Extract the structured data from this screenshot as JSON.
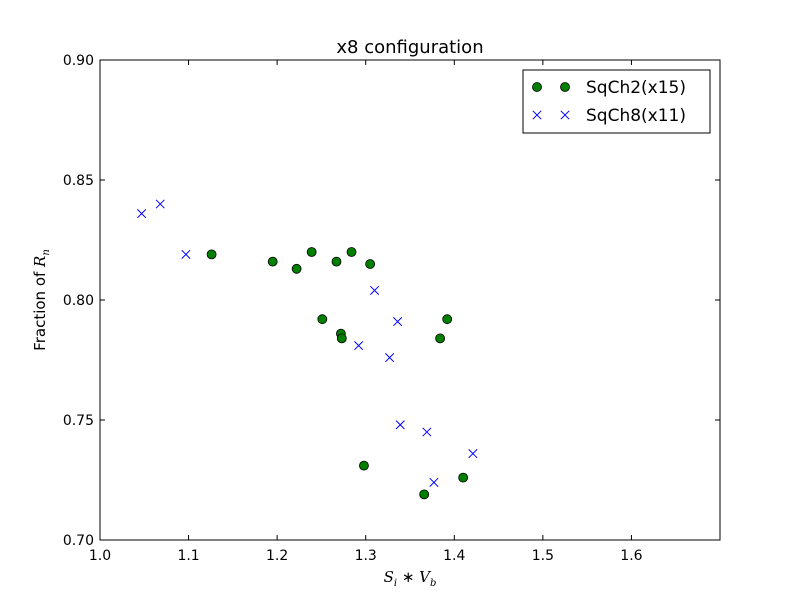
{
  "chart_data": {
    "type": "scatter",
    "title": "x8 configuration",
    "ylabel_prefix": "Fraction of ",
    "ylabel_math": "R",
    "ylabel_math_sub": "n",
    "xlabel_math": [
      "S",
      "i",
      " ∗ ",
      "V",
      "b"
    ],
    "xlim": [
      1.0,
      1.7
    ],
    "ylim": [
      0.7,
      0.9
    ],
    "x_ticks": [
      1.0,
      1.1,
      1.2,
      1.3,
      1.4,
      1.5,
      1.6
    ],
    "x_tick_labels": [
      "1.0",
      "1.1",
      "1.2",
      "1.3",
      "1.4",
      "1.5",
      "1.6"
    ],
    "y_ticks": [
      0.7,
      0.75,
      0.8,
      0.85,
      0.9
    ],
    "y_tick_labels": [
      "0.70",
      "0.75",
      "0.80",
      "0.85",
      "0.90"
    ],
    "grid": false,
    "legend_position": "top-right",
    "series": [
      {
        "name": "SqCh2(x15)",
        "marker": "circle",
        "color": "#007f00",
        "x": [
          1.126,
          1.195,
          1.222,
          1.239,
          1.251,
          1.267,
          1.272,
          1.273,
          1.284,
          1.298,
          1.305,
          1.366,
          1.384,
          1.392,
          1.41
        ],
        "y": [
          0.819,
          0.816,
          0.813,
          0.82,
          0.792,
          0.816,
          0.786,
          0.784,
          0.82,
          0.731,
          0.815,
          0.719,
          0.784,
          0.792,
          0.726
        ]
      },
      {
        "name": "SqCh8(x11)",
        "marker": "x",
        "color": "#0000ff",
        "x": [
          1.047,
          1.068,
          1.097,
          1.292,
          1.31,
          1.327,
          1.336,
          1.339,
          1.369,
          1.377,
          1.421
        ],
        "y": [
          0.836,
          0.84,
          0.819,
          0.781,
          0.804,
          0.776,
          0.791,
          0.748,
          0.745,
          0.724,
          0.736
        ]
      }
    ]
  }
}
